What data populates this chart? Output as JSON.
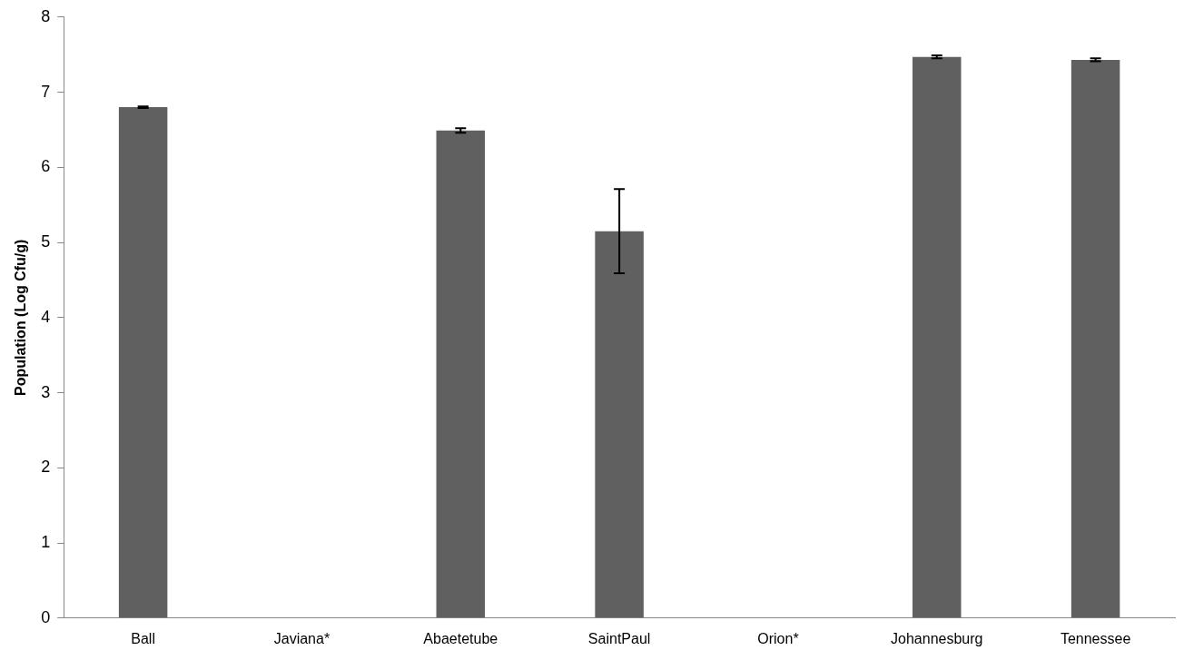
{
  "chart_data": {
    "type": "bar",
    "ylabel": "Population (Log Cfu/g)",
    "categories": [
      "Ball",
      "Javiana*",
      "Abaetetube",
      "SaintPaul",
      "Orion*",
      "Johannesburg",
      "Tennessee"
    ],
    "values": [
      6.8,
      0,
      6.49,
      5.15,
      0,
      7.47,
      7.43
    ],
    "errors": [
      0.01,
      null,
      0.03,
      0.56,
      null,
      0.02,
      0.02
    ],
    "color": "#606060",
    "ylim": [
      0,
      8
    ],
    "yticks": [
      0,
      1,
      2,
      3,
      4,
      5,
      6,
      7,
      8
    ],
    "grid": false,
    "legend": false
  }
}
